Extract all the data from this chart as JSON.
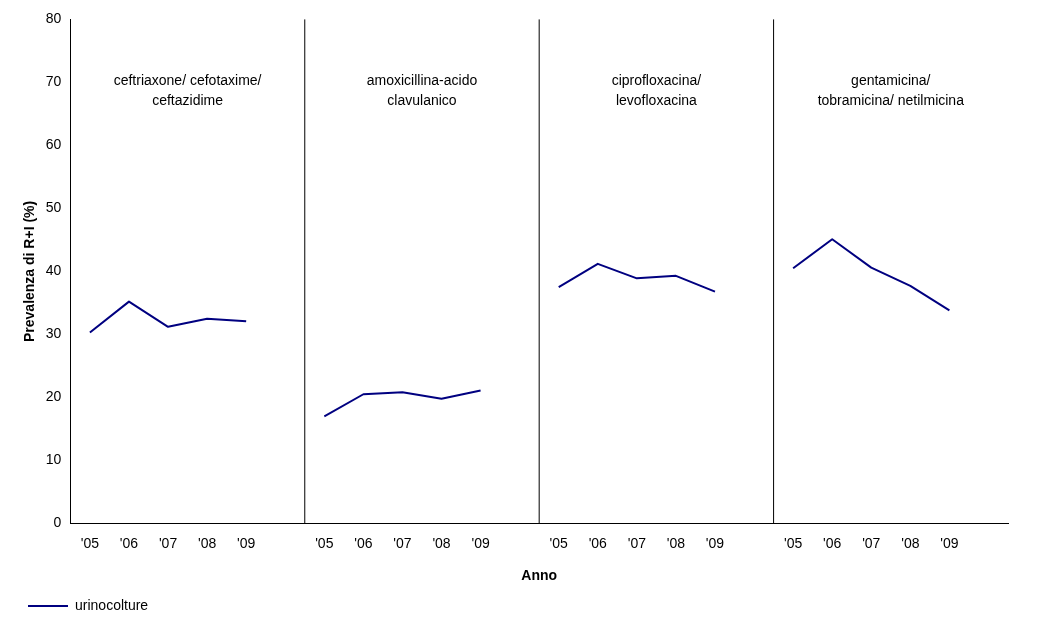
{
  "chart_data": {
    "type": "line",
    "xlabel": "Anno",
    "ylabel": "Prevalenza di R+I (%)",
    "categories": [
      "'05",
      "'06",
      "'07",
      "'08",
      "'09",
      null,
      "'05",
      "'06",
      "'07",
      "'08",
      "'09",
      null,
      "'05",
      "'06",
      "'07",
      "'08",
      "'09",
      null,
      "'05",
      "'06",
      "'07",
      "'08",
      "'09",
      null
    ],
    "series": [
      {
        "name": "urinocolture",
        "color": "#000080",
        "values": [
          30.3,
          35.2,
          31.2,
          32.5,
          32.1,
          null,
          17.0,
          20.5,
          20.8,
          19.8,
          21.1,
          null,
          37.5,
          41.2,
          38.9,
          39.3,
          36.8,
          null,
          40.5,
          45.1,
          40.6,
          37.7,
          33.8,
          null
        ]
      }
    ],
    "ylim": [
      0,
      80
    ],
    "yticks": [
      0,
      10,
      20,
      30,
      40,
      50,
      60,
      70,
      80
    ],
    "annotations": [
      "ceftriaxone/ cefotaxime/\nceftazidime",
      "amoxicillina-acido\nclavulanico",
      "ciprofloxacina/\nlevofloxacina",
      "gentamicina/\ntobramicina/ netilmicina"
    ],
    "grid": false,
    "legend": "bottom left",
    "marker": "none",
    "line_style": "solid"
  }
}
